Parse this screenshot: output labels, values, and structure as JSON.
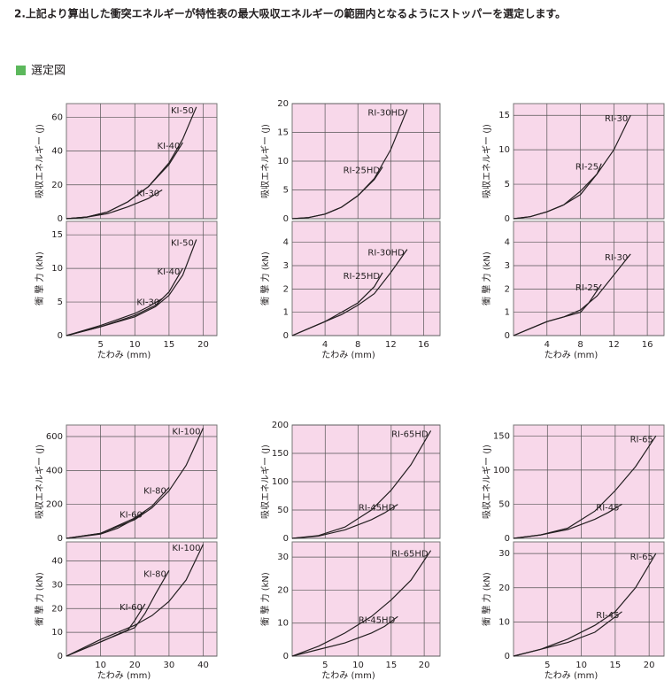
{
  "heading": "2.上記より算出した衝突エネルギーが特性表の最大吸収エネルギーの範囲内となるようにストッパーを選定します。",
  "section_title": "選定図",
  "chart_data": [
    {
      "type": "line",
      "xlim": [
        0,
        22
      ],
      "xticks": [
        5,
        10,
        15,
        20
      ],
      "xlabel": "たわみ (mm)",
      "top": {
        "ylabel": "吸収エネルギー (J)",
        "ylim": [
          0,
          68
        ],
        "yticks": [
          0,
          20,
          40,
          60
        ],
        "series": [
          {
            "name": "KI-50",
            "color": "#231f20",
            "x": [
              0,
              3,
              6,
              9,
              12,
              15,
              17,
              19
            ],
            "values": [
              0,
              1,
              4,
              10,
              19,
              33,
              47,
              66
            ]
          },
          {
            "name": "KI-40",
            "color": "#231f20",
            "x": [
              0,
              3,
              6,
              9,
              12,
              15,
              17
            ],
            "values": [
              0,
              1,
              4,
              10,
              19,
              32,
              45
            ]
          },
          {
            "name": "KI-30",
            "color": "#231f20",
            "x": [
              0,
              3,
              6,
              9,
              12,
              14
            ],
            "values": [
              0,
              1,
              3,
              7,
              12,
              17
            ]
          }
        ]
      },
      "bottom": {
        "ylabel": "衝 撃 力 (kN)",
        "ylim": [
          0,
          17
        ],
        "yticks": [
          0,
          5,
          10,
          15
        ],
        "series": [
          {
            "name": "KI-50",
            "color": "#231f20",
            "x": [
              0,
              5,
              10,
              13,
              15,
              17,
              19
            ],
            "values": [
              0,
              1.3,
              2.8,
              4.3,
              6,
              9,
              14.3
            ]
          },
          {
            "name": "KI-40",
            "color": "#231f20",
            "x": [
              0,
              5,
              10,
              13,
              15,
              17
            ],
            "values": [
              0,
              1.3,
              3,
              4.5,
              6.5,
              10
            ]
          },
          {
            "name": "KI-30",
            "color": "#231f20",
            "x": [
              0,
              5,
              10,
              12,
              14
            ],
            "values": [
              0,
              1.5,
              3.3,
              4.3,
              5.5
            ]
          }
        ]
      }
    },
    {
      "type": "line",
      "xlim": [
        0,
        18
      ],
      "xticks": [
        4,
        8,
        12,
        16
      ],
      "xlabel": "たわみ (mm)",
      "top": {
        "ylabel": "吸収エネルギー (J)",
        "ylim": [
          0,
          20
        ],
        "yticks": [
          0,
          5,
          10,
          15,
          20
        ],
        "series": [
          {
            "name": "RI-30HD",
            "color": "#231f20",
            "x": [
              0,
              2,
              4,
              6,
              8,
              10,
              12,
              14
            ],
            "values": [
              0,
              0.2,
              0.8,
              2,
              4,
              7,
              12,
              19
            ]
          },
          {
            "name": "RI-25HD",
            "color": "#231f20",
            "x": [
              0,
              2,
              4,
              6,
              8,
              10,
              11
            ],
            "values": [
              0,
              0.2,
              0.8,
              2,
              4,
              6.8,
              9
            ]
          }
        ]
      },
      "bottom": {
        "ylabel": "衝 撃 力 (kN)",
        "ylim": [
          0,
          4.9
        ],
        "yticks": [
          0,
          1,
          2,
          3,
          4
        ],
        "series": [
          {
            "name": "RI-30HD",
            "color": "#231f20",
            "x": [
              0,
              2,
              4,
              6,
              8,
              10,
              12,
              14
            ],
            "values": [
              0,
              0.3,
              0.6,
              0.9,
              1.3,
              1.8,
              2.7,
              3.7
            ]
          },
          {
            "name": "RI-25HD",
            "color": "#231f20",
            "x": [
              0,
              2,
              4,
              6,
              8,
              10,
              11
            ],
            "values": [
              0,
              0.3,
              0.6,
              1,
              1.4,
              2.1,
              2.7
            ]
          }
        ]
      }
    },
    {
      "type": "line",
      "xlim": [
        0,
        18
      ],
      "xticks": [
        4,
        8,
        12,
        16
      ],
      "xlabel": "たわみ (mm)",
      "top": {
        "ylabel": "吸収エネルギー (J)",
        "ylim": [
          0,
          16.7
        ],
        "yticks": [
          0,
          5,
          10,
          15
        ],
        "series": [
          {
            "name": "RI-30",
            "color": "#231f20",
            "x": [
              0,
              2,
              4,
              6,
              8,
              10,
              12,
              14
            ],
            "values": [
              0,
              0.3,
              1,
              2,
              4,
              6.5,
              10,
              15
            ]
          },
          {
            "name": "RI-25",
            "color": "#231f20",
            "x": [
              0,
              2,
              4,
              6,
              8,
              10,
              10.5
            ],
            "values": [
              0,
              0.3,
              1,
              2,
              3.5,
              6.5,
              8
            ]
          }
        ]
      },
      "bottom": {
        "ylabel": "衝 撃 力 (kN)",
        "ylim": [
          0,
          4.9
        ],
        "yticks": [
          0,
          1,
          2,
          3,
          4
        ],
        "series": [
          {
            "name": "RI-30",
            "color": "#231f20",
            "x": [
              0,
              2,
              4,
              6,
              8,
              10,
              12,
              14
            ],
            "values": [
              0,
              0.3,
              0.6,
              0.8,
              1.1,
              1.7,
              2.6,
              3.5
            ]
          },
          {
            "name": "RI-25",
            "color": "#231f20",
            "x": [
              0,
              2,
              4,
              6,
              8,
              9,
              10.5
            ],
            "values": [
              0,
              0.3,
              0.6,
              0.8,
              1,
              1.4,
              2.2
            ]
          }
        ]
      }
    },
    {
      "type": "line",
      "xlim": [
        0,
        44
      ],
      "xticks": [
        10,
        20,
        30,
        40
      ],
      "xlabel": "たわみ (mm)",
      "top": {
        "ylabel": "吸収エネルギー (J)",
        "ylim": [
          0,
          668
        ],
        "yticks": [
          0,
          200,
          400,
          600
        ],
        "series": [
          {
            "name": "KI-100",
            "color": "#231f20",
            "x": [
              0,
              10,
              20,
              25,
              30,
              35,
              40
            ],
            "values": [
              0,
              30,
              110,
              180,
              280,
              430,
              650
            ]
          },
          {
            "name": "KI-80",
            "color": "#231f20",
            "x": [
              0,
              10,
              20,
              25,
              30
            ],
            "values": [
              0,
              30,
              120,
              190,
              300
            ]
          },
          {
            "name": "KI-60",
            "color": "#231f20",
            "x": [
              0,
              10,
              15,
              20,
              23
            ],
            "values": [
              0,
              25,
              60,
              115,
              160
            ]
          }
        ]
      },
      "bottom": {
        "ylabel": "衝 撃 力 (kN)",
        "ylim": [
          0,
          48
        ],
        "yticks": [
          0,
          10,
          20,
          30,
          40
        ],
        "series": [
          {
            "name": "KI-100",
            "color": "#231f20",
            "x": [
              0,
              10,
              20,
              25,
              30,
              35,
              40
            ],
            "values": [
              0,
              7,
              13,
              17,
              23,
              32,
              47
            ]
          },
          {
            "name": "KI-80",
            "color": "#231f20",
            "x": [
              0,
              10,
              20,
              23,
              26,
              30
            ],
            "values": [
              0,
              6,
              12,
              18,
              26,
              36
            ]
          },
          {
            "name": "KI-60",
            "color": "#231f20",
            "x": [
              0,
              10,
              18,
              20,
              23
            ],
            "values": [
              0,
              6,
              11,
              15,
              22
            ]
          }
        ]
      }
    },
    {
      "type": "line",
      "xlim": [
        0,
        22.4
      ],
      "xticks": [
        5,
        10,
        15,
        20
      ],
      "xlabel": "たわみ (mm)",
      "top": {
        "ylabel": "吸収エネルギー (J)",
        "ylim": [
          0,
          200
        ],
        "yticks": [
          0,
          50,
          100,
          150,
          200
        ],
        "series": [
          {
            "name": "RI-65HD",
            "color": "#231f20",
            "x": [
              0,
              4,
              8,
              12,
              15,
              18,
              21
            ],
            "values": [
              0,
              5,
              20,
              50,
              85,
              130,
              190
            ]
          },
          {
            "name": "RI-45HD",
            "color": "#231f20",
            "x": [
              0,
              4,
              8,
              12,
              14,
              16
            ],
            "values": [
              0,
              4,
              15,
              33,
              45,
              60
            ]
          }
        ]
      },
      "bottom": {
        "ylabel": "衝 撃 力 (kN)",
        "ylim": [
          0,
          34.6
        ],
        "yticks": [
          0,
          10,
          20,
          30
        ],
        "series": [
          {
            "name": "RI-65HD",
            "color": "#231f20",
            "x": [
              0,
              4,
              8,
              12,
              15,
              18,
              21
            ],
            "values": [
              0,
              3,
              7,
              12,
              17,
              23,
              32
            ]
          },
          {
            "name": "RI-45HD",
            "color": "#231f20",
            "x": [
              0,
              4,
              8,
              12,
              14,
              16
            ],
            "values": [
              0,
              2,
              4,
              7,
              9,
              12
            ]
          }
        ]
      }
    },
    {
      "type": "line",
      "xlim": [
        0,
        22.2
      ],
      "xticks": [
        5,
        10,
        15,
        20
      ],
      "xlabel": "たわみ (mm)",
      "top": {
        "ylabel": "吸収エネルギー (J)",
        "ylim": [
          0,
          166
        ],
        "yticks": [
          0,
          50,
          100,
          150
        ],
        "series": [
          {
            "name": "RI-65",
            "color": "#231f20",
            "x": [
              0,
              4,
              8,
              12,
              15,
              18,
              21
            ],
            "values": [
              0,
              5,
              15,
              40,
              70,
              105,
              150
            ]
          },
          {
            "name": "RI-45",
            "color": "#231f20",
            "x": [
              0,
              4,
              8,
              12,
              14,
              16
            ],
            "values": [
              0,
              5,
              13,
              28,
              38,
              50
            ]
          }
        ]
      },
      "bottom": {
        "ylabel": "衝 撃 力 (kN)",
        "ylim": [
          0,
          33.4
        ],
        "yticks": [
          0,
          10,
          20,
          30
        ],
        "series": [
          {
            "name": "RI-65",
            "color": "#231f20",
            "x": [
              0,
              4,
              8,
              12,
              15,
              18,
              21
            ],
            "values": [
              0,
              2,
              5,
              9,
              13,
              20,
              30
            ]
          },
          {
            "name": "RI-45",
            "color": "#231f20",
            "x": [
              0,
              4,
              8,
              12,
              14,
              16
            ],
            "values": [
              0,
              2,
              4,
              7,
              10,
              13
            ]
          }
        ]
      }
    }
  ]
}
